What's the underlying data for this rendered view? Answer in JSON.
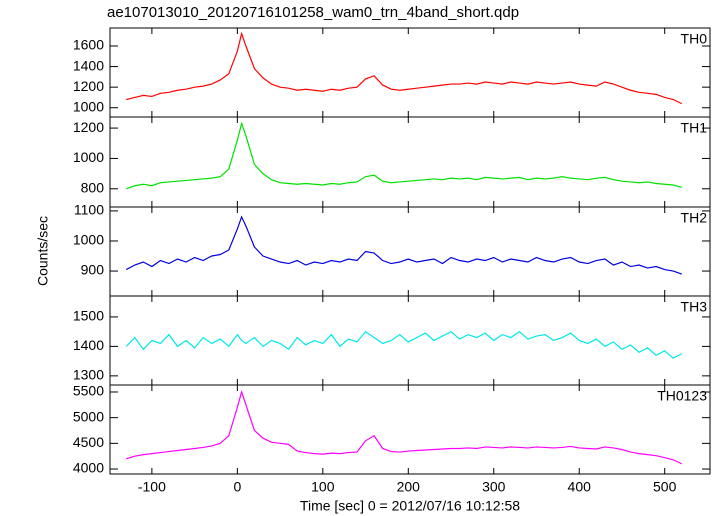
{
  "chart_data": [
    {
      "type": "line",
      "title": "ae107013010_20120716101258_wam0_trn_4band_short.qdp",
      "x": [
        -130,
        -120,
        -110,
        -100,
        -90,
        -80,
        -70,
        -60,
        -50,
        -40,
        -30,
        -20,
        -10,
        0,
        5,
        10,
        20,
        30,
        40,
        50,
        60,
        70,
        80,
        90,
        100,
        110,
        120,
        130,
        140,
        150,
        160,
        170,
        180,
        190,
        200,
        210,
        220,
        230,
        240,
        250,
        260,
        270,
        280,
        290,
        300,
        310,
        320,
        330,
        340,
        350,
        360,
        370,
        380,
        390,
        400,
        410,
        420,
        430,
        440,
        450,
        460,
        470,
        480,
        490,
        500,
        510,
        520
      ],
      "series": [
        {
          "name": "TH0",
          "color": "#ff0000",
          "values": [
            1080,
            1100,
            1120,
            1110,
            1140,
            1150,
            1170,
            1180,
            1200,
            1210,
            1230,
            1270,
            1330,
            1550,
            1720,
            1600,
            1380,
            1290,
            1230,
            1200,
            1190,
            1170,
            1180,
            1170,
            1160,
            1180,
            1170,
            1190,
            1200,
            1280,
            1310,
            1220,
            1180,
            1170,
            1180,
            1190,
            1200,
            1210,
            1220,
            1230,
            1230,
            1240,
            1230,
            1250,
            1240,
            1230,
            1250,
            1240,
            1230,
            1250,
            1240,
            1230,
            1240,
            1250,
            1230,
            1220,
            1210,
            1250,
            1230,
            1200,
            1170,
            1150,
            1140,
            1130,
            1100,
            1080,
            1040
          ]
        }
      ],
      "xlim": [
        -149,
        553
      ],
      "ylim": [
        910,
        1775
      ],
      "yticks": [
        1000,
        1200,
        1400,
        1600
      ]
    },
    {
      "type": "line",
      "x": [
        -130,
        -120,
        -110,
        -100,
        -90,
        -80,
        -70,
        -60,
        -50,
        -40,
        -30,
        -20,
        -10,
        0,
        5,
        10,
        20,
        30,
        40,
        50,
        60,
        70,
        80,
        90,
        100,
        110,
        120,
        130,
        140,
        150,
        160,
        170,
        180,
        190,
        200,
        210,
        220,
        230,
        240,
        250,
        260,
        270,
        280,
        290,
        300,
        310,
        320,
        330,
        340,
        350,
        360,
        370,
        380,
        390,
        400,
        410,
        420,
        430,
        440,
        450,
        460,
        470,
        480,
        490,
        500,
        510,
        520
      ],
      "series": [
        {
          "name": "TH1",
          "color": "#00e000",
          "values": [
            800,
            820,
            830,
            820,
            840,
            845,
            850,
            855,
            860,
            865,
            870,
            880,
            930,
            1120,
            1230,
            1150,
            960,
            900,
            860,
            840,
            835,
            830,
            835,
            830,
            825,
            835,
            830,
            840,
            845,
            880,
            890,
            850,
            840,
            845,
            850,
            855,
            860,
            865,
            860,
            870,
            865,
            870,
            860,
            875,
            870,
            865,
            870,
            875,
            860,
            870,
            865,
            870,
            880,
            870,
            865,
            860,
            870,
            875,
            860,
            850,
            845,
            840,
            845,
            835,
            830,
            825,
            810
          ]
        }
      ],
      "xlim": [
        -149,
        553
      ],
      "ylim": [
        680,
        1273
      ],
      "yticks": [
        800,
        1000,
        1200
      ]
    },
    {
      "type": "line",
      "ylabel": "Counts/sec",
      "x": [
        -130,
        -120,
        -110,
        -100,
        -90,
        -80,
        -70,
        -60,
        -50,
        -40,
        -30,
        -20,
        -10,
        0,
        5,
        10,
        20,
        30,
        40,
        50,
        60,
        70,
        80,
        90,
        100,
        110,
        120,
        130,
        140,
        150,
        160,
        170,
        180,
        190,
        200,
        210,
        220,
        230,
        240,
        250,
        260,
        270,
        280,
        290,
        300,
        310,
        320,
        330,
        340,
        350,
        360,
        370,
        380,
        390,
        400,
        410,
        420,
        430,
        440,
        450,
        460,
        470,
        480,
        490,
        500,
        510,
        520
      ],
      "series": [
        {
          "name": "TH2",
          "color": "#0000e0",
          "values": [
            905,
            920,
            930,
            915,
            935,
            925,
            940,
            930,
            945,
            935,
            950,
            955,
            970,
            1040,
            1080,
            1050,
            980,
            950,
            940,
            930,
            925,
            935,
            920,
            930,
            925,
            935,
            930,
            940,
            935,
            965,
            960,
            935,
            925,
            930,
            940,
            930,
            935,
            940,
            925,
            945,
            935,
            930,
            940,
            935,
            945,
            930,
            940,
            935,
            930,
            945,
            935,
            930,
            940,
            945,
            930,
            925,
            935,
            940,
            920,
            930,
            915,
            920,
            910,
            915,
            905,
            900,
            890
          ]
        }
      ],
      "xlim": [
        -149,
        553
      ],
      "ylim": [
        817,
        1113
      ],
      "yticks": [
        900,
        1000,
        1100
      ]
    },
    {
      "type": "line",
      "x": [
        -130,
        -120,
        -110,
        -100,
        -90,
        -80,
        -70,
        -60,
        -50,
        -40,
        -30,
        -20,
        -10,
        0,
        5,
        10,
        20,
        30,
        40,
        50,
        60,
        70,
        80,
        90,
        100,
        110,
        120,
        130,
        140,
        150,
        160,
        170,
        180,
        190,
        200,
        210,
        220,
        230,
        240,
        250,
        260,
        270,
        280,
        290,
        300,
        310,
        320,
        330,
        340,
        350,
        360,
        370,
        380,
        390,
        400,
        410,
        420,
        430,
        440,
        450,
        460,
        470,
        480,
        490,
        500,
        510,
        520
      ],
      "series": [
        {
          "name": "TH3",
          "color": "#00e8e8",
          "values": [
            1400,
            1430,
            1390,
            1420,
            1410,
            1440,
            1400,
            1420,
            1395,
            1430,
            1410,
            1425,
            1400,
            1440,
            1420,
            1410,
            1430,
            1400,
            1420,
            1410,
            1390,
            1430,
            1405,
            1420,
            1410,
            1440,
            1400,
            1425,
            1415,
            1450,
            1430,
            1410,
            1420,
            1440,
            1415,
            1430,
            1445,
            1420,
            1435,
            1450,
            1425,
            1440,
            1430,
            1445,
            1420,
            1440,
            1430,
            1450,
            1425,
            1435,
            1440,
            1420,
            1430,
            1445,
            1420,
            1410,
            1425,
            1400,
            1415,
            1390,
            1405,
            1380,
            1395,
            1370,
            1385,
            1360,
            1375
          ]
        }
      ],
      "xlim": [
        -149,
        553
      ],
      "ylim": [
        1269,
        1571
      ],
      "yticks": [
        1300,
        1400,
        1500
      ]
    },
    {
      "type": "line",
      "xlabel": "Time [sec] 0 = 2012/07/16 10:12:58",
      "x": [
        -130,
        -120,
        -110,
        -100,
        -90,
        -80,
        -70,
        -60,
        -50,
        -40,
        -30,
        -20,
        -10,
        0,
        5,
        10,
        20,
        30,
        40,
        50,
        60,
        70,
        80,
        90,
        100,
        110,
        120,
        130,
        140,
        150,
        160,
        170,
        180,
        190,
        200,
        210,
        220,
        230,
        240,
        250,
        260,
        270,
        280,
        290,
        300,
        310,
        320,
        330,
        340,
        350,
        360,
        370,
        380,
        390,
        400,
        410,
        420,
        430,
        440,
        450,
        460,
        470,
        480,
        490,
        500,
        510,
        520
      ],
      "series": [
        {
          "name": "TH0123",
          "color": "#ff00ff",
          "values": [
            4200,
            4250,
            4280,
            4300,
            4320,
            4340,
            4360,
            4380,
            4400,
            4420,
            4450,
            4500,
            4650,
            5200,
            5500,
            5250,
            4750,
            4600,
            4520,
            4500,
            4480,
            4350,
            4320,
            4300,
            4290,
            4310,
            4300,
            4320,
            4330,
            4550,
            4650,
            4400,
            4340,
            4330,
            4350,
            4360,
            4370,
            4380,
            4390,
            4400,
            4400,
            4410,
            4400,
            4430,
            4420,
            4410,
            4430,
            4420,
            4410,
            4430,
            4420,
            4410,
            4420,
            4440,
            4410,
            4400,
            4390,
            4430,
            4410,
            4380,
            4330,
            4300,
            4280,
            4260,
            4220,
            4180,
            4100
          ]
        }
      ],
      "xlim": [
        -149,
        553
      ],
      "ylim": [
        3903,
        5636
      ],
      "yticks": [
        4000,
        4500,
        5000,
        5500
      ],
      "xticks": [
        -100,
        0,
        100,
        200,
        300,
        400,
        500
      ]
    }
  ]
}
